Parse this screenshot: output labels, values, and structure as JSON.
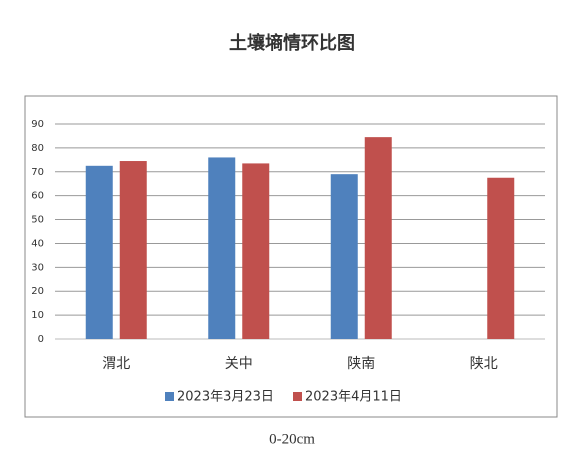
{
  "chart_data": {
    "type": "bar",
    "title": "土壤墒情环比图",
    "caption": "0-20cm",
    "categories": [
      "渭北",
      "关中",
      "陕南",
      "陕北"
    ],
    "series": [
      {
        "name": "2023年3月23日",
        "color": "#4f81bd",
        "values": [
          72.5,
          76,
          69,
          null
        ]
      },
      {
        "name": "2023年4月11日",
        "color": "#c0504d",
        "values": [
          74.5,
          73.5,
          84.5,
          67.5
        ]
      }
    ],
    "ylim": [
      0,
      90
    ],
    "yticks": [
      0,
      10,
      20,
      30,
      40,
      50,
      60,
      70,
      80,
      90
    ],
    "grid": true,
    "legend": "bottom"
  }
}
